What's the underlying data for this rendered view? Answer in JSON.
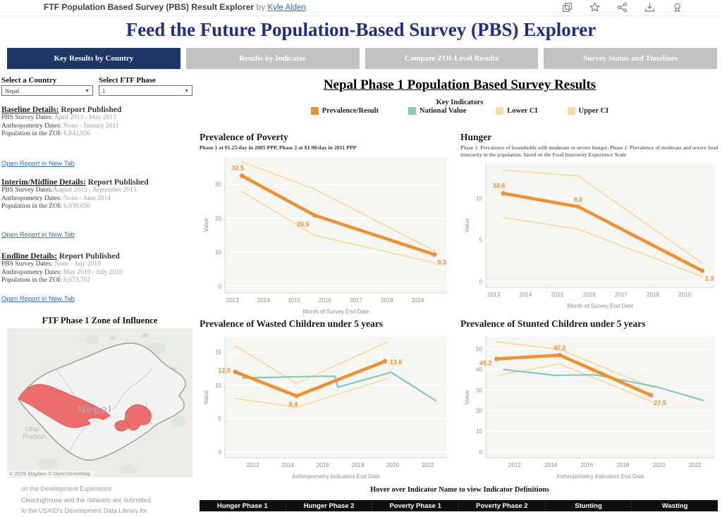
{
  "embed_header": {
    "title": "FTF Population Based Survey (PBS) Result Explorer",
    "by_text": "by",
    "author": "Kyle Alden"
  },
  "page": {
    "main_title": "Feed the Future Population-Based Survey (PBS) Explorer"
  },
  "tabs": [
    {
      "label": "Key Results by Country",
      "active": true
    },
    {
      "label": "Results by Indicator",
      "active": false
    },
    {
      "label": "Compare ZOI-Level Results",
      "active": false
    },
    {
      "label": "Survey Status and Timelines",
      "active": false
    }
  ],
  "filters": {
    "country_label": "Select a Country",
    "country_value": "Nepal",
    "phase_label": "Select FTF Phase",
    "phase_value": "1"
  },
  "report_sections": [
    {
      "heading": "Baseline Details:",
      "status": "Report Published",
      "rows": [
        {
          "label": "PBS Survey Dates:",
          "value": "April 2013 - May 2013"
        },
        {
          "label": "Anthropometry Dates:",
          "value": "None - January 2011"
        },
        {
          "label": "Population in the ZOI:",
          "value": "6,842,936"
        }
      ],
      "link": "Open Report in New Tab"
    },
    {
      "heading": "Interim/Midline Details:",
      "status": "Report Published",
      "rows": [
        {
          "label": "PBS Survey Dates:",
          "value": "August 2015 - September 2015"
        },
        {
          "label": "Anthropometry Dates:",
          "value": "None - June 2014"
        },
        {
          "label": "Population in the ZOI:",
          "value": "6,939,050"
        }
      ],
      "link": "Open Report in New Tab"
    },
    {
      "heading": "Endline Details:",
      "status": "Report Published",
      "rows": [
        {
          "label": "PBS Survey Dates:",
          "value": "None - July 2019"
        },
        {
          "label": "Anthropometry Dates:",
          "value": "May 2019 - July 2019"
        },
        {
          "label": "Population in the ZOI:",
          "value": "6,673,792"
        }
      ],
      "link": "Open Report in New Tab"
    }
  ],
  "results_title": "Nepal Phase 1 Population Based Survey Results",
  "legend": {
    "title": "Key Indicators",
    "items": [
      {
        "label": "Prevalence/Result",
        "color": "#f28e2b"
      },
      {
        "label": "National Value",
        "color": "#7fc9c0"
      },
      {
        "label": "Lower CI",
        "color": "#fbd9a0"
      },
      {
        "label": "Upper CI",
        "color": "#fbd9a0"
      }
    ]
  },
  "map": {
    "heading": "FTF Phase 1 Zone of Influence",
    "country_label": "Nepal",
    "region_label_line1": "Uttar",
    "region_label_line2": "Pradesh",
    "attribution": "© 2025 Mapbox © OpenStreetMap",
    "zoi_color": "#ed6c6c"
  },
  "footer_note_lines": [
    "on the Development Experience",
    "Clearinghouse and the datasets are submitted",
    "to the USAID's Development Data Library for"
  ],
  "hover_hint": "Hover over Indicator Name to view Indicator Definitions",
  "indicator_bar": [
    "Hunger Phase 1",
    "Hunger Phase 2",
    "Poverty Phase 1",
    "Poverty Phase 2",
    "Stunting",
    "Wasting"
  ],
  "chart_data": [
    {
      "type": "line",
      "title": "Prevalence of Poverty",
      "subtitle": "Phase 1 at $1.25/day in 2005 PPP, Phase 2 at $1.90/day in 2011 PPP",
      "xlabel": "Month of Survey End Date",
      "ylabel": "Value",
      "xlim": [
        2012.75,
        2019.95
      ],
      "ylim": [
        -2,
        38
      ],
      "xticks": [
        2013,
        2014,
        2015,
        2016,
        2017,
        2018,
        2019
      ],
      "yticks": [
        0,
        10,
        20,
        30
      ],
      "series": [
        {
          "name": "Upper CI",
          "color": "#fbd9a0",
          "width": 1.8,
          "x": [
            2013.3,
            2015.65,
            2019.55
          ],
          "y": [
            36.6,
            28.6,
            10.4
          ]
        },
        {
          "name": "Lower CI",
          "color": "#fbd9a0",
          "width": 1.8,
          "x": [
            2013.3,
            2015.65,
            2019.55
          ],
          "y": [
            27.9,
            15.0,
            6.9
          ]
        },
        {
          "name": "Prevalence/Result",
          "color": "#f28e2b",
          "width": 4.5,
          "markers": true,
          "x": [
            2013.3,
            2015.65,
            2019.55
          ],
          "y": [
            32.5,
            20.9,
            9.3
          ],
          "labels": [
            {
              "text": "32.5",
              "pos": "above-left"
            },
            {
              "text": "20.9",
              "pos": "below-left"
            },
            {
              "text": "9.3",
              "pos": "below-right"
            }
          ]
        }
      ]
    },
    {
      "type": "line",
      "title": "Hunger",
      "subtitle": "Phase 1: Prevalence of households with moderate or severe hunger, Phase 2: Prevalence of moderate and severe food insecurity in the population, based on the Food Insecurity Experience Scale",
      "xlabel": "Month of Survey End Date",
      "ylabel": "Value",
      "xlim": [
        2012.75,
        2019.95
      ],
      "ylim": [
        -0.7,
        14.2
      ],
      "xticks": [
        2013,
        2014,
        2015,
        2016,
        2017,
        2018,
        2019
      ],
      "yticks": [
        0,
        5,
        10
      ],
      "series": [
        {
          "name": "Upper CI",
          "color": "#fbd9a0",
          "width": 1.8,
          "x": [
            2013.3,
            2015.65,
            2019.55
          ],
          "y": [
            13.4,
            12.7,
            2.2
          ]
        },
        {
          "name": "Lower CI",
          "color": "#fbd9a0",
          "width": 1.8,
          "x": [
            2013.3,
            2015.65,
            2019.55
          ],
          "y": [
            7.7,
            6.3,
            0.6
          ]
        },
        {
          "name": "Prevalence/Result",
          "color": "#f28e2b",
          "width": 4.5,
          "markers": true,
          "x": [
            2013.3,
            2015.65,
            2019.55
          ],
          "y": [
            10.6,
            9.0,
            1.3
          ],
          "labels": [
            {
              "text": "10.6",
              "pos": "above-left"
            },
            {
              "text": "9.0",
              "pos": "above"
            },
            {
              "text": "1.3",
              "pos": "below-right"
            }
          ]
        }
      ]
    },
    {
      "type": "line",
      "title": "Prevalence of Wasted Children under 5 years",
      "xlabel": "Anthropometry Indicators End Date",
      "ylabel": "Value",
      "xlim": [
        2010.4,
        2023.1
      ],
      "ylim": [
        -0.9,
        17.3
      ],
      "xticks": [
        2012,
        2014,
        2016,
        2018,
        2020,
        2022
      ],
      "yticks": [
        0,
        5,
        10,
        15
      ],
      "series": [
        {
          "name": "Upper CI",
          "color": "#fbd9a0",
          "width": 1.8,
          "x": [
            2011.0,
            2014.5,
            2019.7
          ],
          "y": [
            15.9,
            10.3,
            16.5
          ]
        },
        {
          "name": "Lower CI",
          "color": "#fbd9a0",
          "width": 1.8,
          "x": [
            2011.0,
            2014.5,
            2019.7
          ],
          "y": [
            8.0,
            6.7,
            11.0
          ]
        },
        {
          "name": "National Value",
          "color": "#7fc9c0",
          "width": 2.2,
          "x": [
            2011.4,
            2015.9,
            2016.7,
            2016.85,
            2019.9,
            2022.45
          ],
          "y": [
            11.1,
            11.35,
            11.35,
            9.7,
            11.95,
            7.7
          ]
        },
        {
          "name": "Prevalence/Result",
          "color": "#f28e2b",
          "width": 4.5,
          "markers": true,
          "x": [
            2011.0,
            2014.5,
            2019.55
          ],
          "y": [
            12.0,
            8.4,
            13.6
          ],
          "labels": [
            {
              "text": "12.0",
              "pos": "left"
            },
            {
              "text": "8.4",
              "pos": "below"
            },
            {
              "text": "13.6",
              "pos": "right"
            }
          ]
        }
      ]
    },
    {
      "type": "line",
      "title": "Prevalence of Stunted Children under 5 years",
      "xlabel": "Anthropometry Indicators End Date",
      "ylabel": "Value",
      "xlim": [
        2010.4,
        2023.1
      ],
      "ylim": [
        -3,
        56
      ],
      "xticks": [
        2012,
        2014,
        2016,
        2018,
        2020,
        2022
      ],
      "yticks": [
        0,
        10,
        20,
        30,
        40,
        50
      ],
      "series": [
        {
          "name": "Upper CI",
          "color": "#fbd9a0",
          "width": 1.8,
          "x": [
            2011.0,
            2014.5,
            2019.7
          ],
          "y": [
            53.5,
            49.8,
            31.0
          ]
        },
        {
          "name": "Lower CI",
          "color": "#fbd9a0",
          "width": 1.8,
          "x": [
            2011.0,
            2014.5,
            2019.7
          ],
          "y": [
            37.0,
            42.8,
            24.0
          ]
        },
        {
          "name": "National Value",
          "color": "#7fc9c0",
          "width": 2.2,
          "x": [
            2011.4,
            2014.2,
            2016.5,
            2019.9,
            2022.45
          ],
          "y": [
            40.0,
            37.2,
            37.4,
            31.5,
            25.0
          ]
        },
        {
          "name": "Prevalence/Result",
          "color": "#f28e2b",
          "width": 4.5,
          "markers": true,
          "x": [
            2011.0,
            2014.5,
            2019.55
          ],
          "y": [
            45.2,
            47.0,
            27.5
          ],
          "labels": [
            {
              "text": "45.2",
              "pos": "left-below"
            },
            {
              "text": "47.0",
              "pos": "above"
            },
            {
              "text": "27.5",
              "pos": "below-right"
            }
          ]
        }
      ]
    }
  ]
}
